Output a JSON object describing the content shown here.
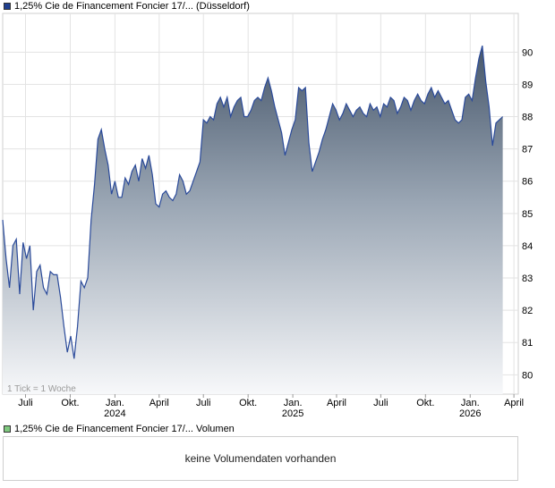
{
  "legend": {
    "price_label": "1,25% Cie de Financement Foncier 17/... (Düsseldorf)",
    "price_color": "#1f3f8f",
    "volume_label": "1,25% Cie de Financement Foncier 17/... Volumen",
    "volume_color": "#7fc97f"
  },
  "volume_panel": {
    "message": "keine Volumendaten vorhanden"
  },
  "chart_data": {
    "type": "area",
    "tick_note": "1 Tick = 1 Woche",
    "ylim": [
      79.4,
      91.2
    ],
    "y_ticks": [
      80,
      81,
      82,
      83,
      84,
      85,
      86,
      87,
      88,
      89,
      90
    ],
    "x_ticks": [
      {
        "label": "Juli",
        "date": "2023-07-01"
      },
      {
        "label": "Okt.",
        "date": "2023-10-01"
      },
      {
        "label": "Jan.",
        "sub": "2024",
        "date": "2024-01-01"
      },
      {
        "label": "April",
        "date": "2024-04-01"
      },
      {
        "label": "Juli",
        "date": "2024-07-01"
      },
      {
        "label": "Okt.",
        "date": "2024-10-01"
      },
      {
        "label": "Jan.",
        "sub": "2025",
        "date": "2025-01-01"
      },
      {
        "label": "April",
        "date": "2025-04-01"
      },
      {
        "label": "Juli",
        "date": "2025-07-01"
      },
      {
        "label": "Okt.",
        "date": "2025-10-01"
      },
      {
        "label": "Jan.",
        "sub": "2026",
        "date": "2026-01-01"
      },
      {
        "label": "April",
        "date": "2026-04-01"
      }
    ],
    "grid": true,
    "line_color": "#2a4a9a",
    "series": [
      {
        "points": [
          [
            "2023-05-15",
            84.8
          ],
          [
            "2023-05-22",
            83.6
          ],
          [
            "2023-05-29",
            82.7
          ],
          [
            "2023-06-05",
            84.0
          ],
          [
            "2023-06-12",
            84.2
          ],
          [
            "2023-06-19",
            82.5
          ],
          [
            "2023-06-26",
            84.1
          ],
          [
            "2023-07-03",
            83.6
          ],
          [
            "2023-07-10",
            84.0
          ],
          [
            "2023-07-17",
            82.0
          ],
          [
            "2023-07-24",
            83.2
          ],
          [
            "2023-07-31",
            83.4
          ],
          [
            "2023-08-07",
            82.7
          ],
          [
            "2023-08-14",
            82.5
          ],
          [
            "2023-08-21",
            83.2
          ],
          [
            "2023-08-28",
            83.1
          ],
          [
            "2023-09-04",
            83.1
          ],
          [
            "2023-09-11",
            82.4
          ],
          [
            "2023-09-18",
            81.5
          ],
          [
            "2023-09-25",
            80.7
          ],
          [
            "2023-10-02",
            81.2
          ],
          [
            "2023-10-09",
            80.5
          ],
          [
            "2023-10-16",
            81.5
          ],
          [
            "2023-10-23",
            82.9
          ],
          [
            "2023-10-30",
            82.7
          ],
          [
            "2023-11-06",
            83.0
          ],
          [
            "2023-11-13",
            84.8
          ],
          [
            "2023-11-20",
            85.9
          ],
          [
            "2023-11-27",
            87.3
          ],
          [
            "2023-12-04",
            87.6
          ],
          [
            "2023-12-11",
            87.0
          ],
          [
            "2023-12-18",
            86.5
          ],
          [
            "2023-12-25",
            85.6
          ],
          [
            "2024-01-01",
            86.0
          ],
          [
            "2024-01-08",
            85.5
          ],
          [
            "2024-01-15",
            85.5
          ],
          [
            "2024-01-22",
            86.1
          ],
          [
            "2024-01-29",
            85.9
          ],
          [
            "2024-02-05",
            86.3
          ],
          [
            "2024-02-12",
            86.5
          ],
          [
            "2024-02-19",
            86.0
          ],
          [
            "2024-02-26",
            86.7
          ],
          [
            "2024-03-04",
            86.4
          ],
          [
            "2024-03-11",
            86.8
          ],
          [
            "2024-03-18",
            86.2
          ],
          [
            "2024-03-25",
            85.3
          ],
          [
            "2024-04-01",
            85.2
          ],
          [
            "2024-04-08",
            85.6
          ],
          [
            "2024-04-15",
            85.7
          ],
          [
            "2024-04-22",
            85.5
          ],
          [
            "2024-04-29",
            85.4
          ],
          [
            "2024-05-06",
            85.6
          ],
          [
            "2024-05-13",
            86.2
          ],
          [
            "2024-05-20",
            86.0
          ],
          [
            "2024-05-27",
            85.6
          ],
          [
            "2024-06-03",
            85.7
          ],
          [
            "2024-06-10",
            86.0
          ],
          [
            "2024-06-17",
            86.3
          ],
          [
            "2024-06-24",
            86.6
          ],
          [
            "2024-07-01",
            87.9
          ],
          [
            "2024-07-08",
            87.8
          ],
          [
            "2024-07-15",
            88.0
          ],
          [
            "2024-07-22",
            87.9
          ],
          [
            "2024-07-29",
            88.4
          ],
          [
            "2024-08-05",
            88.6
          ],
          [
            "2024-08-12",
            88.3
          ],
          [
            "2024-08-19",
            88.6
          ],
          [
            "2024-08-26",
            88.0
          ],
          [
            "2024-09-02",
            88.3
          ],
          [
            "2024-09-09",
            88.5
          ],
          [
            "2024-09-16",
            88.6
          ],
          [
            "2024-09-23",
            88.0
          ],
          [
            "2024-09-30",
            88.0
          ],
          [
            "2024-10-07",
            88.2
          ],
          [
            "2024-10-14",
            88.5
          ],
          [
            "2024-10-21",
            88.6
          ],
          [
            "2024-10-28",
            88.5
          ],
          [
            "2024-11-04",
            88.9
          ],
          [
            "2024-11-11",
            89.2
          ],
          [
            "2024-11-18",
            88.8
          ],
          [
            "2024-11-25",
            88.3
          ],
          [
            "2024-12-02",
            87.9
          ],
          [
            "2024-12-09",
            87.5
          ],
          [
            "2024-12-16",
            86.8
          ],
          [
            "2024-12-23",
            87.2
          ],
          [
            "2024-12-30",
            87.6
          ],
          [
            "2025-01-06",
            87.9
          ],
          [
            "2025-01-13",
            88.9
          ],
          [
            "2025-01-20",
            88.8
          ],
          [
            "2025-01-27",
            88.9
          ],
          [
            "2025-02-03",
            87.2
          ],
          [
            "2025-02-10",
            86.3
          ],
          [
            "2025-02-17",
            86.6
          ],
          [
            "2025-02-24",
            86.9
          ],
          [
            "2025-03-03",
            87.3
          ],
          [
            "2025-03-10",
            87.6
          ],
          [
            "2025-03-17",
            88.0
          ],
          [
            "2025-03-24",
            88.4
          ],
          [
            "2025-03-31",
            88.2
          ],
          [
            "2025-04-07",
            87.9
          ],
          [
            "2025-04-14",
            88.1
          ],
          [
            "2025-04-21",
            88.4
          ],
          [
            "2025-04-28",
            88.2
          ],
          [
            "2025-05-05",
            88.0
          ],
          [
            "2025-05-12",
            88.2
          ],
          [
            "2025-05-19",
            88.3
          ],
          [
            "2025-05-26",
            88.1
          ],
          [
            "2025-06-02",
            88.0
          ],
          [
            "2025-06-09",
            88.4
          ],
          [
            "2025-06-16",
            88.2
          ],
          [
            "2025-06-23",
            88.3
          ],
          [
            "2025-06-30",
            88.0
          ],
          [
            "2025-07-07",
            88.4
          ],
          [
            "2025-07-14",
            88.3
          ],
          [
            "2025-07-21",
            88.6
          ],
          [
            "2025-07-28",
            88.5
          ],
          [
            "2025-08-04",
            88.1
          ],
          [
            "2025-08-11",
            88.3
          ],
          [
            "2025-08-18",
            88.6
          ],
          [
            "2025-08-25",
            88.5
          ],
          [
            "2025-09-01",
            88.2
          ],
          [
            "2025-09-08",
            88.5
          ],
          [
            "2025-09-15",
            88.7
          ],
          [
            "2025-09-22",
            88.5
          ],
          [
            "2025-09-29",
            88.4
          ],
          [
            "2025-10-06",
            88.7
          ],
          [
            "2025-10-13",
            88.9
          ],
          [
            "2025-10-20",
            88.6
          ],
          [
            "2025-10-27",
            88.8
          ],
          [
            "2025-11-03",
            88.6
          ],
          [
            "2025-11-10",
            88.4
          ],
          [
            "2025-11-17",
            88.5
          ],
          [
            "2025-11-24",
            88.2
          ],
          [
            "2025-12-01",
            87.9
          ],
          [
            "2025-12-08",
            87.8
          ],
          [
            "2025-12-15",
            87.9
          ],
          [
            "2025-12-22",
            88.6
          ],
          [
            "2025-12-29",
            88.7
          ],
          [
            "2026-01-05",
            88.5
          ],
          [
            "2026-01-12",
            89.2
          ],
          [
            "2026-01-19",
            89.8
          ],
          [
            "2026-01-26",
            90.2
          ],
          [
            "2026-02-02",
            89.1
          ],
          [
            "2026-02-09",
            88.3
          ],
          [
            "2026-02-16",
            87.1
          ],
          [
            "2026-02-23",
            87.8
          ],
          [
            "2026-03-02",
            87.9
          ],
          [
            "2026-03-09",
            88.0
          ]
        ]
      }
    ]
  }
}
